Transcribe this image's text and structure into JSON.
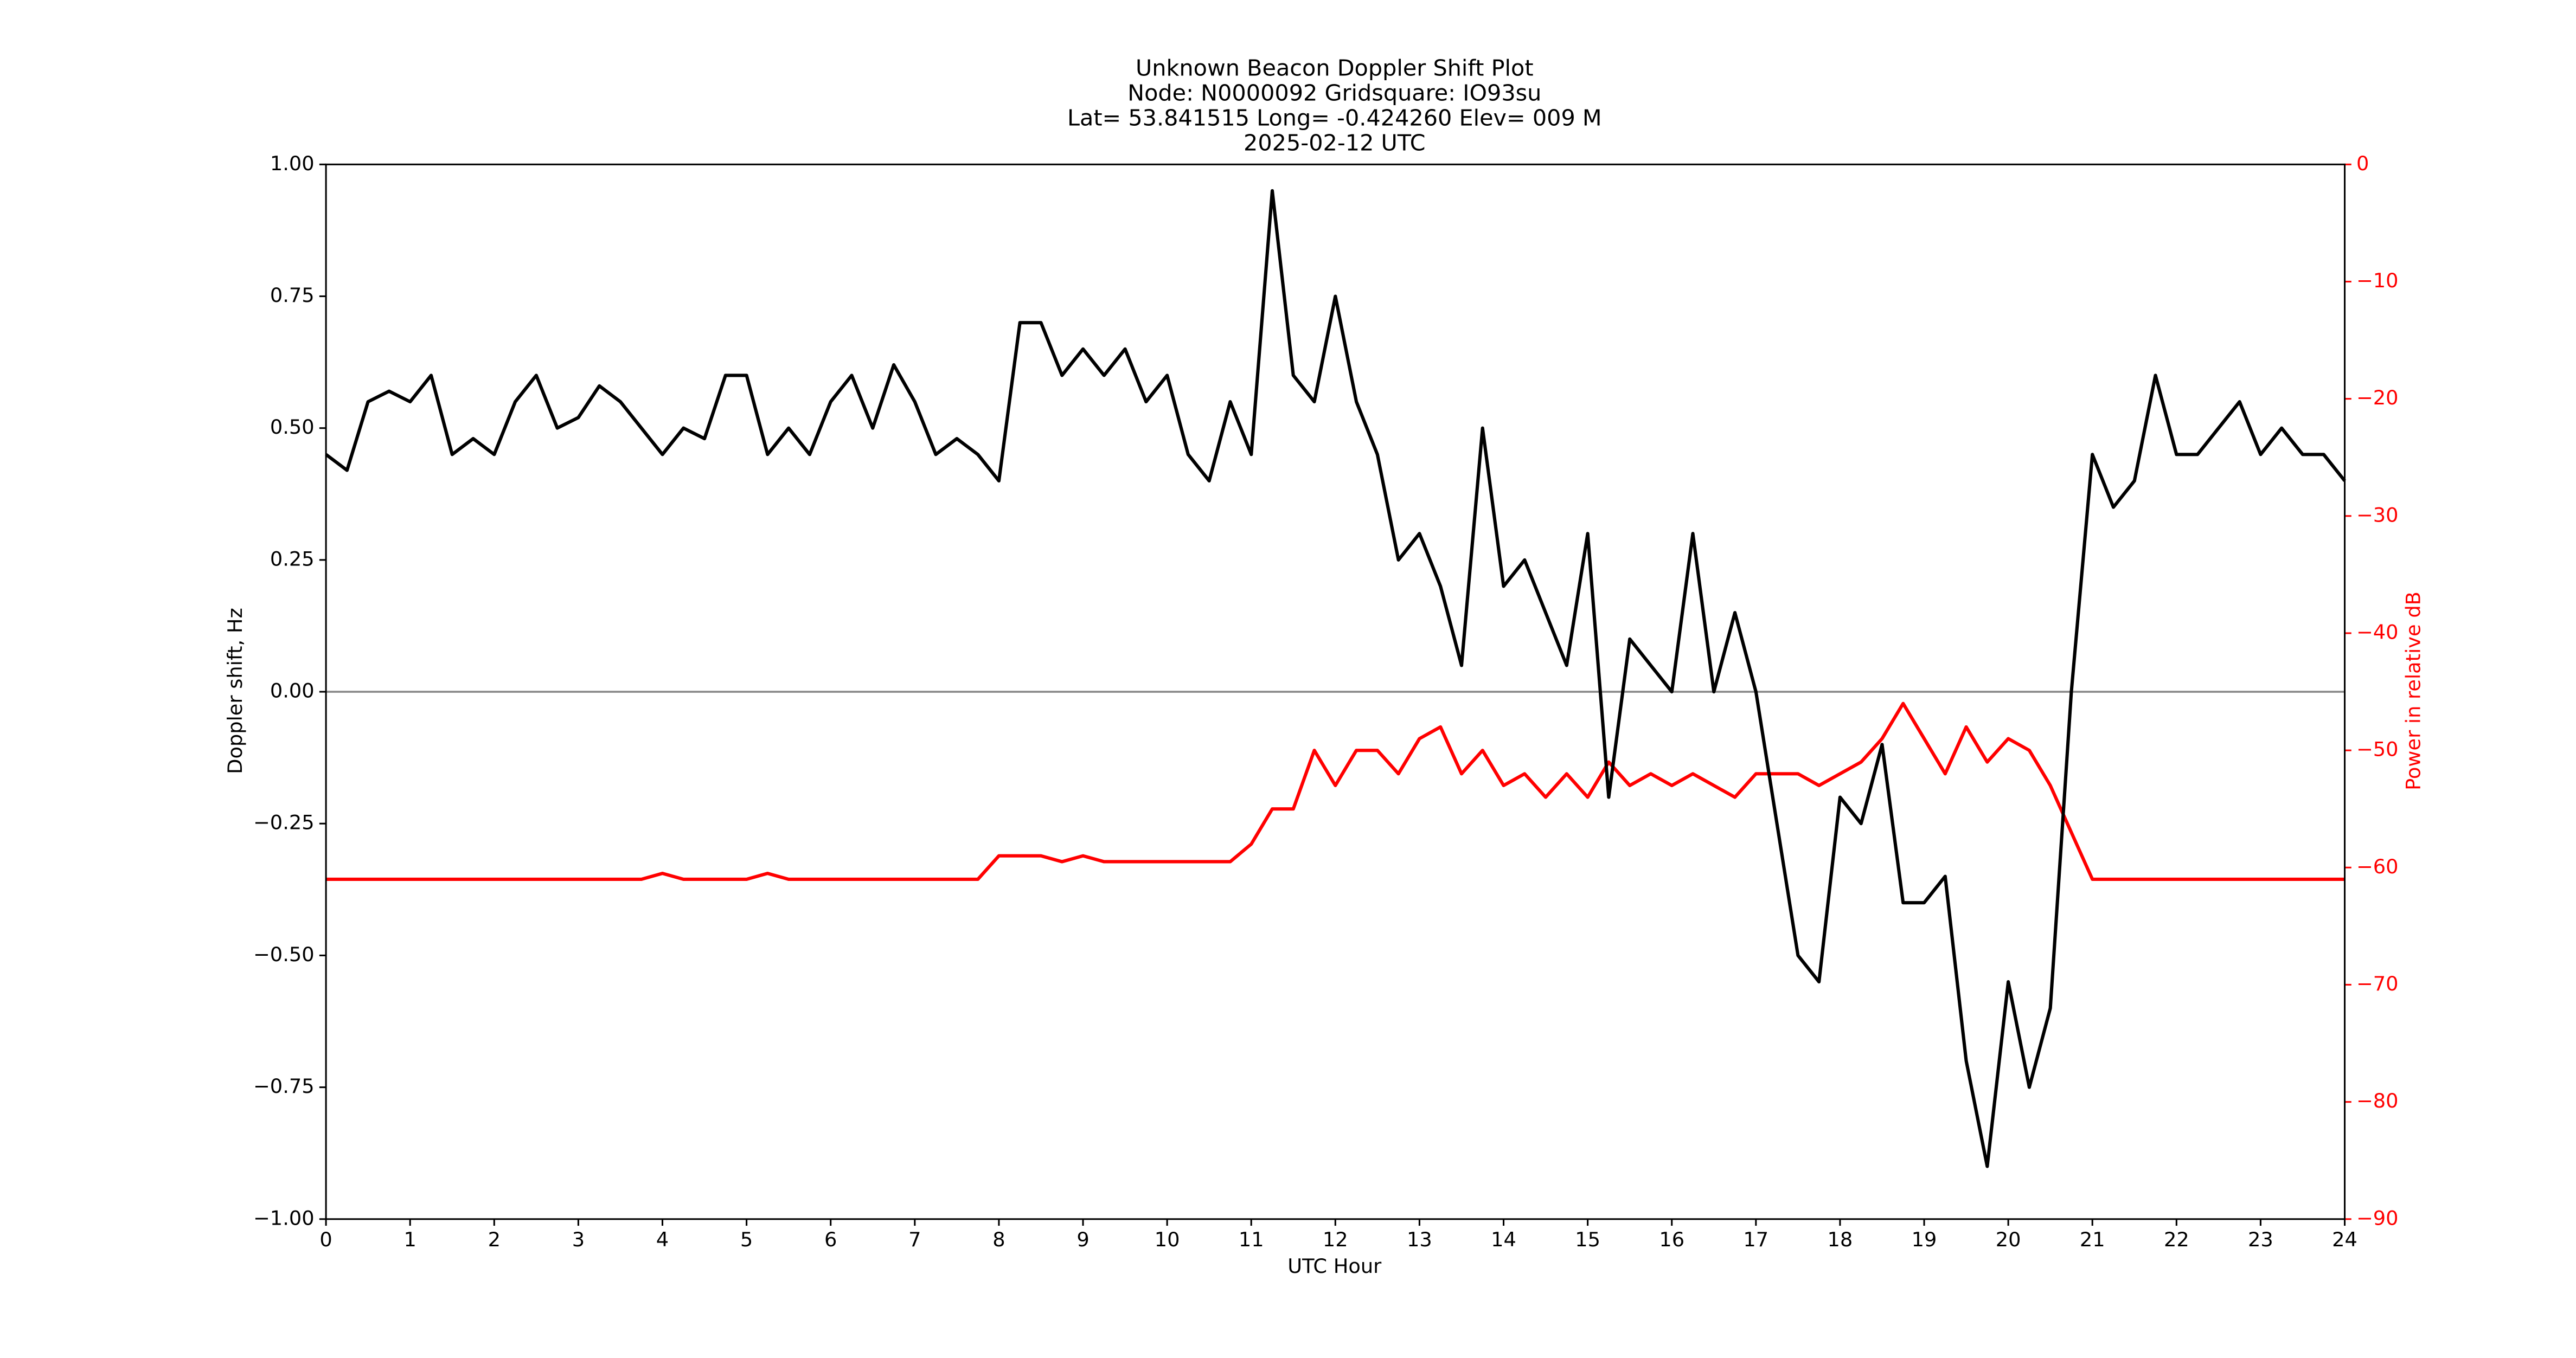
{
  "chart_data": {
    "type": "line",
    "title": [
      "Unknown Beacon Doppler Shift Plot",
      "Node:  N0000092     Gridsquare:  IO93su",
      "Lat= 53.841515    Long= -0.424260    Elev= 009 M",
      "2025-02-12  UTC"
    ],
    "xlabel": "UTC Hour",
    "ylabel": "Doppler shift, Hz",
    "y2label": "Power in relative dB",
    "x": [
      0,
      0.25,
      0.5,
      0.75,
      1,
      1.25,
      1.5,
      1.75,
      2,
      2.25,
      2.5,
      2.75,
      3,
      3.25,
      3.5,
      3.75,
      4,
      4.25,
      4.5,
      4.75,
      5,
      5.25,
      5.5,
      5.75,
      6,
      6.25,
      6.5,
      6.75,
      7,
      7.25,
      7.5,
      7.75,
      8,
      8.25,
      8.5,
      8.75,
      9,
      9.25,
      9.5,
      9.75,
      10,
      10.25,
      10.5,
      10.75,
      11,
      11.25,
      11.5,
      11.75,
      12,
      12.25,
      12.5,
      12.75,
      13,
      13.25,
      13.5,
      13.75,
      14,
      14.25,
      14.5,
      14.75,
      15,
      15.25,
      15.5,
      15.75,
      16,
      16.25,
      16.5,
      16.75,
      17,
      17.25,
      17.5,
      17.75,
      18,
      18.25,
      18.5,
      18.75,
      19,
      19.25,
      19.5,
      19.75,
      20,
      20.25,
      20.5,
      20.75,
      21,
      21.25,
      21.5,
      21.75,
      22,
      22.25,
      22.5,
      22.75,
      23,
      23.25,
      23.5,
      23.75,
      24
    ],
    "series": [
      {
        "name": "Doppler shift",
        "color": "#000000",
        "values": [
          0.45,
          0.42,
          0.55,
          0.57,
          0.55,
          0.6,
          0.45,
          0.48,
          0.45,
          0.55,
          0.6,
          0.5,
          0.52,
          0.58,
          0.55,
          0.5,
          0.45,
          0.5,
          0.48,
          0.6,
          0.6,
          0.45,
          0.5,
          0.45,
          0.55,
          0.6,
          0.5,
          0.62,
          0.55,
          0.45,
          0.48,
          0.45,
          0.4,
          0.7,
          0.7,
          0.6,
          0.65,
          0.6,
          0.65,
          0.55,
          0.6,
          0.45,
          0.4,
          0.55,
          0.45,
          0.95,
          0.6,
          0.55,
          0.75,
          0.55,
          0.45,
          0.25,
          0.3,
          0.2,
          0.05,
          0.5,
          0.2,
          0.25,
          0.15,
          0.05,
          0.3,
          -0.2,
          0.1,
          0.05,
          0.0,
          0.3,
          0.0,
          0.15,
          0.0,
          -0.25,
          -0.5,
          -0.55,
          -0.2,
          -0.25,
          -0.1,
          -0.4,
          -0.4,
          -0.35,
          -0.7,
          -0.9,
          -0.55,
          -0.75,
          -0.6,
          0.0,
          0.45,
          0.35,
          0.4,
          0.6,
          0.45,
          0.45,
          0.5,
          0.55,
          0.45,
          0.5,
          0.45,
          0.45,
          0.4
        ]
      },
      {
        "name": "Power",
        "color": "#ff0000",
        "axis": "y2",
        "values": [
          -61,
          -61,
          -61,
          -61,
          -61,
          -61,
          -61,
          -61,
          -61,
          -61,
          -61,
          -61,
          -61,
          -61,
          -61,
          -61,
          -60.5,
          -61,
          -61,
          -61,
          -61,
          -60.5,
          -61,
          -61,
          -61,
          -61,
          -61,
          -61,
          -61,
          -61,
          -61,
          -61,
          -59,
          -59,
          -59,
          -59.5,
          -59,
          -59.5,
          -59.5,
          -59.5,
          -59.5,
          -59.5,
          -59.5,
          -59.5,
          -58,
          -55,
          -55,
          -50,
          -53,
          -50,
          -50,
          -52,
          -49,
          -48,
          -52,
          -50,
          -53,
          -52,
          -54,
          -52,
          -54,
          -51,
          -53,
          -52,
          -53,
          -52,
          -53,
          -54,
          -52,
          -52,
          -52,
          -53,
          -52,
          -51,
          -49,
          -46,
          -49,
          -52,
          -48,
          -51,
          -49,
          -50,
          -53,
          -57,
          -61,
          -61,
          -61,
          -61,
          -61,
          -61,
          -61,
          -61,
          -61,
          -61,
          -61,
          -61,
          -61
        ]
      }
    ],
    "xlim": [
      0,
      24
    ],
    "xticks": [
      0,
      1,
      2,
      3,
      4,
      5,
      6,
      7,
      8,
      9,
      10,
      11,
      12,
      13,
      14,
      15,
      16,
      17,
      18,
      19,
      20,
      21,
      22,
      23,
      24
    ],
    "ylim": [
      -1,
      1
    ],
    "yticks": [
      {
        "value": -1,
        "label": "−1.00"
      },
      {
        "value": -0.75,
        "label": "−0.75"
      },
      {
        "value": -0.5,
        "label": "−0.50"
      },
      {
        "value": -0.25,
        "label": "−0.25"
      },
      {
        "value": 0,
        "label": "0.00"
      },
      {
        "value": 0.25,
        "label": "0.25"
      },
      {
        "value": 0.5,
        "label": "0.50"
      },
      {
        "value": 0.75,
        "label": "0.75"
      },
      {
        "value": 1,
        "label": "1.00"
      }
    ],
    "y2lim": [
      -90,
      0
    ],
    "y2ticks": [
      {
        "value": -90,
        "label": "−90"
      },
      {
        "value": -80,
        "label": "−80"
      },
      {
        "value": -70,
        "label": "−70"
      },
      {
        "value": -60,
        "label": "−60"
      },
      {
        "value": -50,
        "label": "−50"
      },
      {
        "value": -40,
        "label": "−40"
      },
      {
        "value": -30,
        "label": "−30"
      },
      {
        "value": -20,
        "label": "−20"
      },
      {
        "value": -10,
        "label": "−10"
      },
      0
    ],
    "y2color": "#ff0000",
    "hlines": [
      0
    ]
  }
}
